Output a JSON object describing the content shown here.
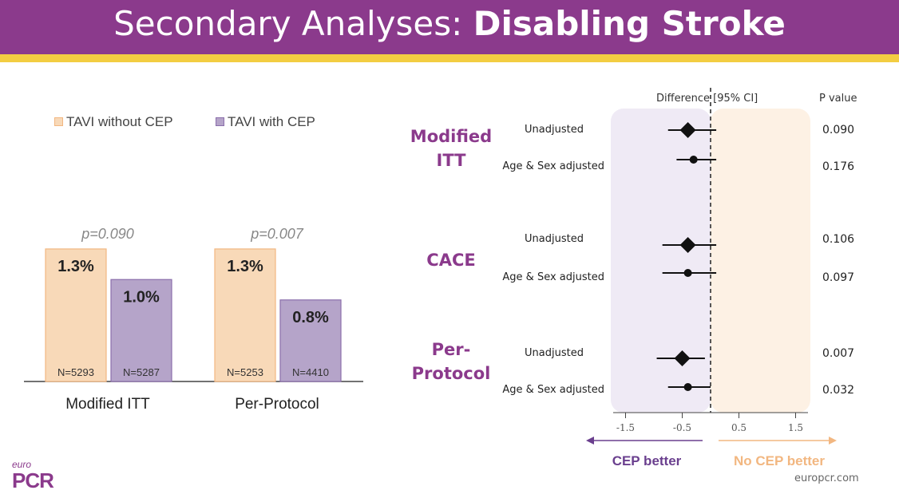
{
  "header": {
    "title_regular": "Secondary Analyses: ",
    "title_bold": "Disabling Stroke"
  },
  "legend": [
    {
      "label": "TAVI without CEP",
      "color": "#f8d9b8"
    },
    {
      "label": "TAVI with CEP",
      "color": "#b5a4c9"
    }
  ],
  "chart_data": [
    {
      "type": "bar",
      "categories": [
        "Modified ITT",
        "Per-Protocol"
      ],
      "series": [
        {
          "name": "TAVI without CEP",
          "values": [
            1.3,
            1.3
          ],
          "labels": [
            "1.3%",
            "1.3%"
          ],
          "n": [
            "N=5293",
            "N=5253"
          ],
          "color": "#f8d9b8",
          "stroke": "#f2b781"
        },
        {
          "name": "TAVI with CEP",
          "values": [
            1.0,
            0.8
          ],
          "labels": [
            "1.0%",
            "0.8%"
          ],
          "n": [
            "N=5287",
            "N=4410"
          ],
          "color": "#b5a4c9",
          "stroke": "#8b6fac"
        }
      ],
      "p_values": [
        "p=0.090",
        "p=0.007"
      ],
      "ylim": [
        0,
        1.55
      ]
    },
    {
      "type": "forest",
      "column_header": "Difference [95% CI]",
      "pvalue_header": "P value",
      "xlim": [
        -1.9,
        2.0
      ],
      "xticks": [
        -1.5,
        -0.5,
        0.5,
        1.5
      ],
      "xtick_labels": [
        "-1.5",
        "-0.5",
        "0.5",
        "1.5"
      ],
      "reference_line": 0,
      "left_label": "CEP better",
      "right_label": "No CEP better",
      "groups": [
        {
          "label": [
            "Modified",
            "ITT"
          ],
          "rows": [
            {
              "label": "Unadjusted",
              "estimate": -0.4,
              "low": -0.75,
              "high": 0.1,
              "p": "0.090",
              "marker": "diamond"
            },
            {
              "label": "Age & Sex adjusted",
              "estimate": -0.3,
              "low": -0.6,
              "high": 0.1,
              "p": "0.176",
              "marker": "circle"
            }
          ]
        },
        {
          "label": [
            "CACE"
          ],
          "rows": [
            {
              "label": "Unadjusted",
              "estimate": -0.4,
              "low": -0.85,
              "high": 0.1,
              "p": "0.106",
              "marker": "diamond"
            },
            {
              "label": "Age & Sex adjusted",
              "estimate": -0.4,
              "low": -0.85,
              "high": 0.1,
              "p": "0.097",
              "marker": "circle"
            }
          ]
        },
        {
          "label": [
            "Per-",
            "Protocol"
          ],
          "rows": [
            {
              "label": "Unadjusted",
              "estimate": -0.5,
              "low": -0.95,
              "high": -0.1,
              "p": "0.007",
              "marker": "diamond"
            },
            {
              "label": "Age & Sex adjusted",
              "estimate": -0.4,
              "low": -0.75,
              "high": 0.0,
              "p": "0.032",
              "marker": "circle"
            }
          ]
        }
      ]
    }
  ],
  "footer": {
    "logo_small": "euro",
    "logo_big": "PCR",
    "site": "europcr.com"
  },
  "colors": {
    "brand": "#8b3a8c",
    "accent": "#f3cd42",
    "cep_better": "#6a3f8e",
    "no_cep_better": "#f2b781"
  }
}
